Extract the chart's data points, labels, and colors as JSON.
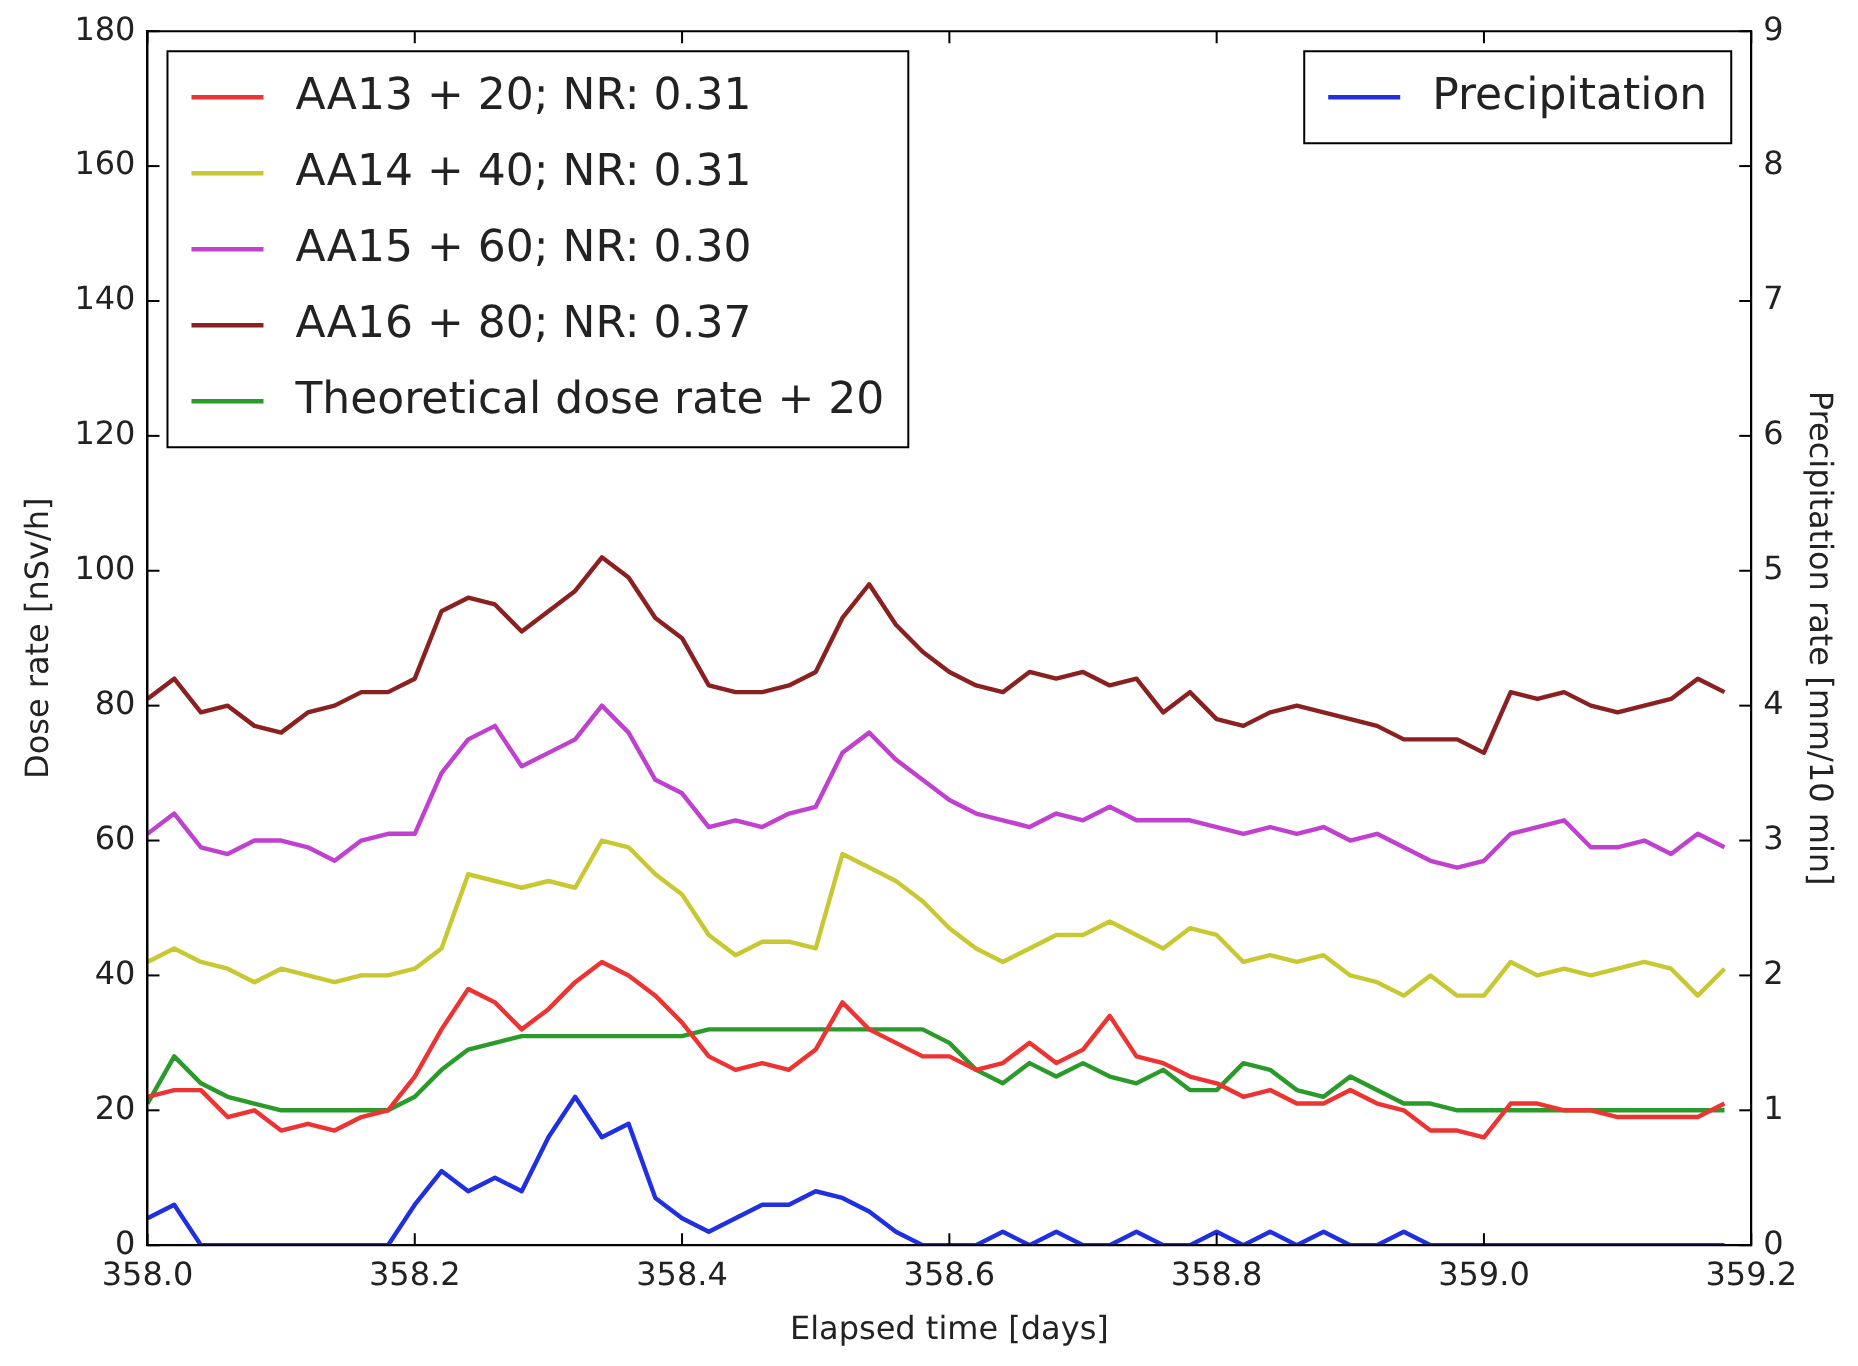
{
  "chart_data": {
    "type": "line",
    "xlabel": "Elapsed time [days]",
    "ylabel": "Dose rate [nSv/h]",
    "y2label": "Precipitation rate [mm/10 min]",
    "x": [
      358.0,
      358.02,
      358.04,
      358.06,
      358.08,
      358.1,
      358.12,
      358.14,
      358.16,
      358.18,
      358.2,
      358.22,
      358.24,
      358.26,
      358.28,
      358.3,
      358.32,
      358.34,
      358.36,
      358.38,
      358.4,
      358.42,
      358.44,
      358.46,
      358.48,
      358.5,
      358.52,
      358.54,
      358.56,
      358.58,
      358.6,
      358.62,
      358.64,
      358.66,
      358.68,
      358.7,
      358.72,
      358.74,
      358.76,
      358.78,
      358.8,
      358.82,
      358.84,
      358.86,
      358.88,
      358.9,
      358.92,
      358.94,
      358.96,
      358.98,
      359.0,
      359.02,
      359.04,
      359.06,
      359.08,
      359.1,
      359.12,
      359.14,
      359.16,
      359.18
    ],
    "series": [
      {
        "name": "AA13 + 20; NR: 0.31",
        "color": "#ee3333",
        "values": [
          22,
          23,
          23,
          19,
          20,
          17,
          18,
          17,
          19,
          20,
          25,
          32,
          38,
          36,
          32,
          35,
          39,
          42,
          40,
          37,
          33,
          28,
          26,
          27,
          26,
          29,
          36,
          32,
          30,
          28,
          28,
          26,
          27,
          30,
          27,
          29,
          34,
          28,
          27,
          25,
          24,
          22,
          23,
          21,
          21,
          23,
          21,
          20,
          17,
          17,
          16,
          21,
          21,
          20,
          20,
          19,
          19,
          19,
          19,
          21
        ]
      },
      {
        "name": "AA14 + 40; NR: 0.31",
        "color": "#c8c832",
        "values": [
          42,
          44,
          42,
          41,
          39,
          41,
          40,
          39,
          40,
          40,
          41,
          44,
          55,
          54,
          53,
          54,
          53,
          60,
          59,
          55,
          52,
          46,
          43,
          45,
          45,
          44,
          58,
          56,
          54,
          51,
          47,
          44,
          42,
          44,
          46,
          46,
          48,
          46,
          44,
          47,
          46,
          42,
          43,
          42,
          43,
          40,
          39,
          37,
          40,
          37,
          37,
          42,
          40,
          41,
          40,
          41,
          42,
          41,
          37,
          41
        ]
      },
      {
        "name": "AA15 + 60; NR: 0.30",
        "color": "#c040d0",
        "values": [
          61,
          64,
          59,
          58,
          60,
          60,
          59,
          57,
          60,
          61,
          61,
          70,
          75,
          77,
          71,
          73,
          75,
          80,
          76,
          69,
          67,
          62,
          63,
          62,
          64,
          65,
          73,
          76,
          72,
          69,
          66,
          64,
          63,
          62,
          64,
          63,
          65,
          63,
          63,
          63,
          62,
          61,
          62,
          61,
          62,
          60,
          61,
          59,
          57,
          56,
          57,
          61,
          62,
          63,
          59,
          59,
          60,
          58,
          61,
          59
        ]
      },
      {
        "name": "AA16 + 80; NR: 0.37",
        "color": "#8b2020",
        "values": [
          81,
          84,
          79,
          80,
          77,
          76,
          79,
          80,
          82,
          82,
          84,
          94,
          96,
          95,
          91,
          94,
          97,
          102,
          99,
          93,
          90,
          83,
          82,
          82,
          83,
          85,
          93,
          98,
          92,
          88,
          85,
          83,
          82,
          85,
          84,
          85,
          83,
          84,
          79,
          82,
          78,
          77,
          79,
          80,
          79,
          78,
          77,
          75,
          75,
          75,
          73,
          82,
          81,
          82,
          80,
          79,
          80,
          81,
          84,
          82
        ]
      },
      {
        "name": "Theoretical dose rate + 20",
        "color": "#2a9a2a",
        "values": [
          21,
          28,
          24,
          22,
          21,
          20,
          20,
          20,
          20,
          20,
          22,
          26,
          29,
          30,
          31,
          31,
          31,
          31,
          31,
          31,
          31,
          32,
          32,
          32,
          32,
          32,
          32,
          32,
          32,
          32,
          30,
          26,
          24,
          27,
          25,
          27,
          25,
          24,
          26,
          23,
          23,
          27,
          26,
          23,
          22,
          25,
          23,
          21,
          21,
          20,
          20,
          20,
          20,
          20,
          20,
          20,
          20,
          20,
          20,
          20
        ]
      },
      {
        "name": "Precipitation",
        "color": "#2030e0",
        "axis": "y2",
        "values": [
          0.2,
          0.3,
          0,
          0,
          0,
          0,
          0,
          0,
          0,
          0,
          0.3,
          0.55,
          0.4,
          0.5,
          0.4,
          0.8,
          1.1,
          0.8,
          0.9,
          0.35,
          0.2,
          0.1,
          0.2,
          0.3,
          0.3,
          0.4,
          0.35,
          0.25,
          0.1,
          0,
          0,
          0,
          0.1,
          0,
          0.1,
          0,
          0,
          0.1,
          0,
          0,
          0.1,
          0,
          0.1,
          0,
          0.1,
          0,
          0,
          0.1,
          0,
          0,
          0,
          0,
          0,
          0,
          0,
          0,
          0,
          0,
          0,
          0
        ]
      }
    ],
    "xlim": [
      358.0,
      359.2
    ],
    "xticks": [
      {
        "value": 358.0,
        "label": "358.0"
      },
      {
        "value": 358.2,
        "label": "358.2"
      },
      {
        "value": 358.4,
        "label": "358.4"
      },
      {
        "value": 358.6,
        "label": "358.6"
      },
      {
        "value": 358.8,
        "label": "358.8"
      },
      {
        "value": 359.0,
        "label": "359.0"
      },
      {
        "value": 359.2,
        "label": "359.2"
      }
    ],
    "ylim": [
      0,
      180
    ],
    "yticks": [
      0,
      20,
      40,
      60,
      80,
      100,
      120,
      140,
      160,
      180
    ],
    "y2lim": [
      0,
      9
    ],
    "y2ticks": [
      0,
      1,
      2,
      3,
      4,
      5,
      6,
      7,
      8,
      9
    ],
    "grid": false,
    "legend": "top left",
    "line_style": "solid",
    "marker": "none"
  }
}
